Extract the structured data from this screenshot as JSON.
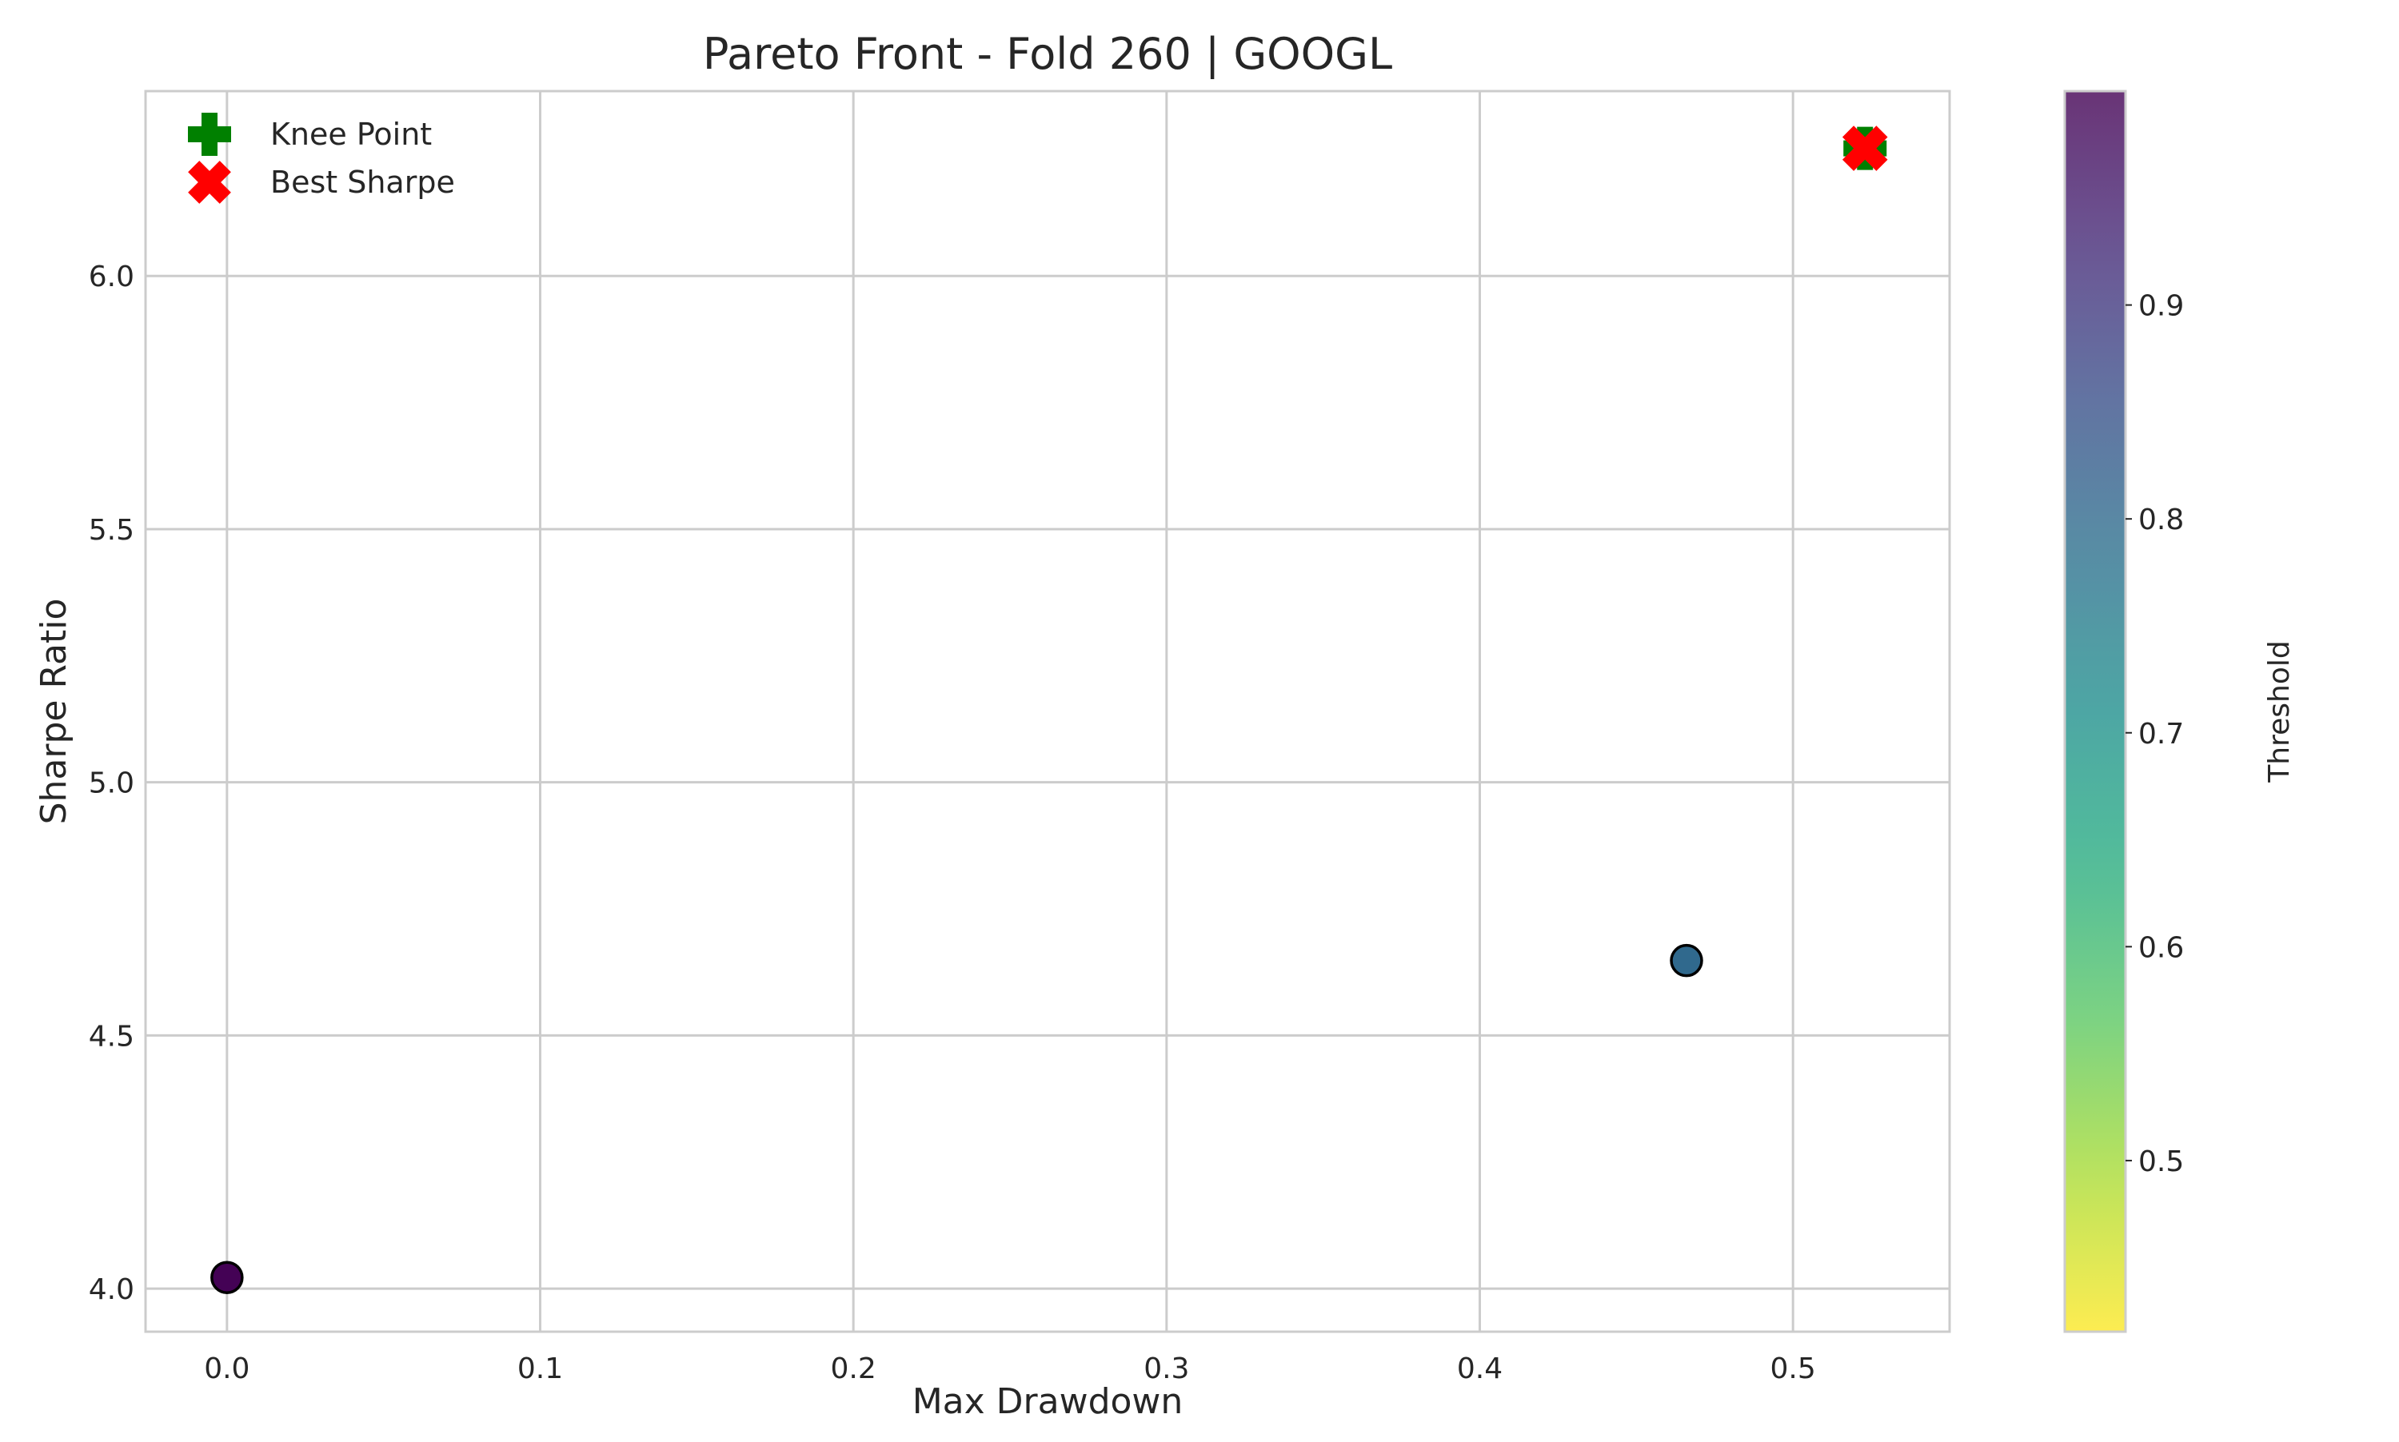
{
  "chart_data": {
    "type": "scatter",
    "title": "Pareto Front - Fold 260 | GOOGL",
    "xlabel": "Max Drawdown",
    "ylabel": "Sharpe Ratio",
    "xlim": [
      -0.026,
      0.55
    ],
    "ylim": [
      3.915,
      6.365
    ],
    "xticks": [
      0.0,
      0.1,
      0.2,
      0.3,
      0.4,
      0.5
    ],
    "xtick_labels": [
      "0.0",
      "0.1",
      "0.2",
      "0.3",
      "0.4",
      "0.5"
    ],
    "yticks": [
      4.0,
      4.5,
      5.0,
      5.5,
      6.0
    ],
    "ytick_labels": [
      "4.0",
      "4.5",
      "5.0",
      "5.5",
      "6.0"
    ],
    "grid": true,
    "legend_position": "top-left",
    "points": [
      {
        "x": 0.0,
        "y": 4.022,
        "threshold": 0.999
      },
      {
        "x": 0.466,
        "y": 4.648,
        "threshold": 0.8
      },
      {
        "x": 0.523,
        "y": 6.252,
        "threshold": 0.75
      }
    ],
    "knee_point": {
      "x": 0.523,
      "y": 6.252,
      "label": "Knee Point",
      "color": "#008000",
      "marker": "plus"
    },
    "best_sharpe": {
      "x": 0.523,
      "y": 6.252,
      "label": "Best Sharpe",
      "color": "#ff0000",
      "marker": "x"
    },
    "colorbar": {
      "label": "Threshold",
      "colormap": "viridis_r",
      "range": [
        0.42,
        1.0
      ],
      "ticks": [
        0.5,
        0.6,
        0.7,
        0.8,
        0.9
      ],
      "tick_labels": [
        "0.5",
        "0.6",
        "0.7",
        "0.8",
        "0.9"
      ],
      "alpha": 0.8
    }
  }
}
